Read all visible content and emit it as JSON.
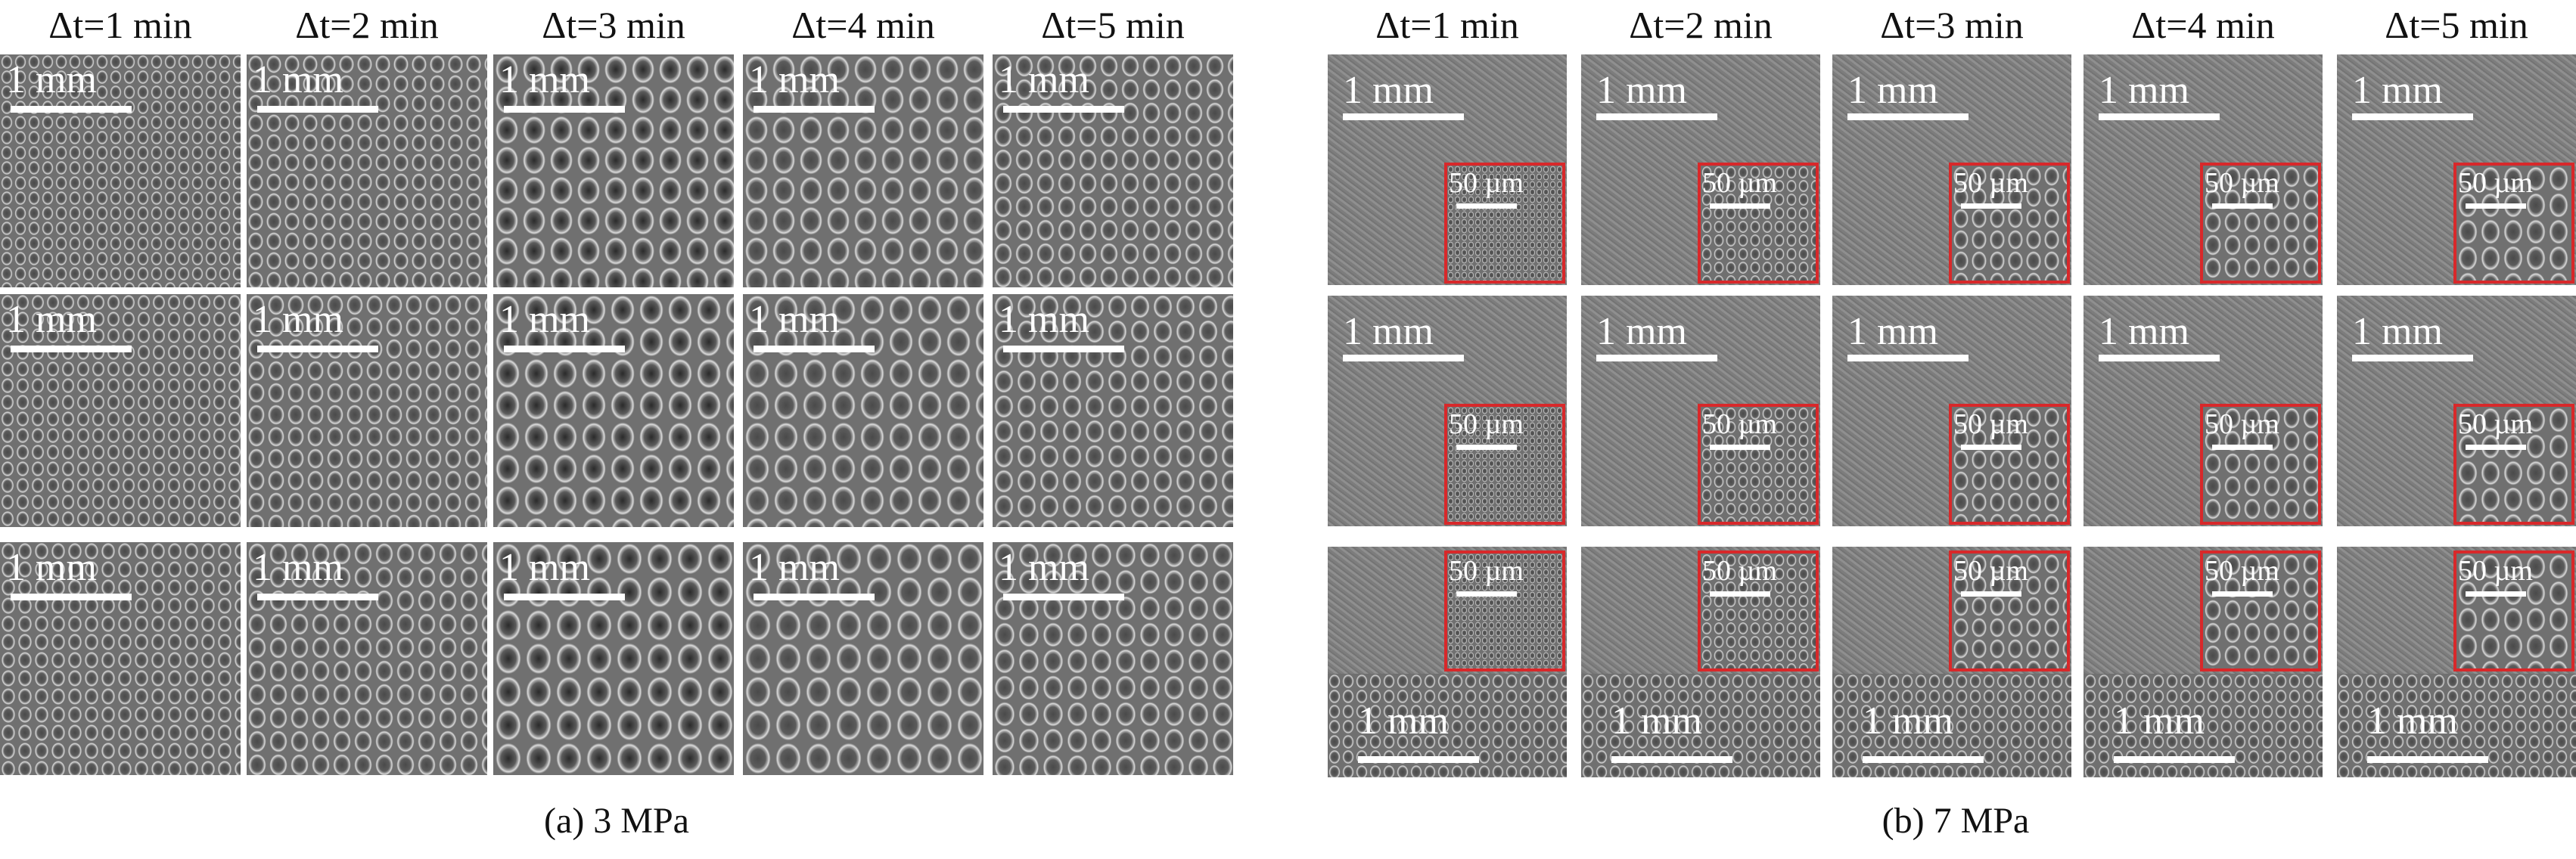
{
  "panels": [
    {
      "id": "a",
      "caption": "(a) 3 MPa",
      "columns": [
        "Δt=1 min",
        "Δt=2 min",
        "Δt=3 min",
        "Δt=4 min",
        "Δt=5 min"
      ],
      "scale_label": "1 mm",
      "has_inset": false
    },
    {
      "id": "b",
      "caption": "(b) 7 MPa",
      "columns": [
        "Δt=1 min",
        "Δt=2 min",
        "Δt=3 min",
        "Δt=4 min",
        "Δt=5 min"
      ],
      "scale_label": "1 mm",
      "inset_scale_label": "50 µm",
      "has_inset": true
    }
  ],
  "colors": {
    "inset_border": "#d8282a",
    "scale_bar": "#ffffff"
  }
}
